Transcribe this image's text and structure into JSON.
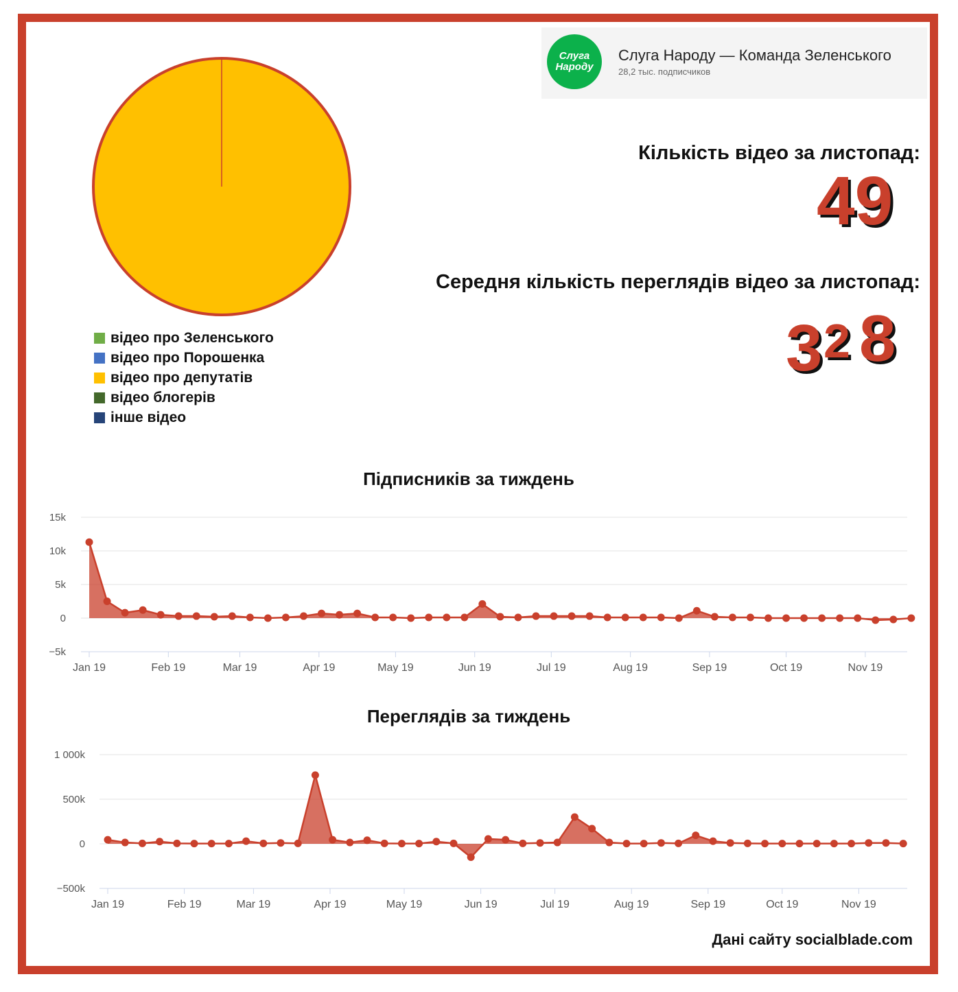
{
  "channel": {
    "logo_line1": "Слуга",
    "logo_line2": "Народу",
    "name": "Слуга Народу — Команда Зеленського",
    "subscribers": "28,2 тыс. подписчиков",
    "logo_color": "#0cb14b"
  },
  "stats": {
    "videos_label": "Кількість відео за листопад:",
    "videos_value": "49",
    "avg_views_label": "Середня кількість переглядів відео за листопад:",
    "avg_views_digit1": "3",
    "avg_views_digit2": "2",
    "avg_views_digit3": "8"
  },
  "source_note": "Дані сайту socialblade.com",
  "chart_data": [
    {
      "type": "pie",
      "slices": [
        {
          "label": "відео про Зеленського",
          "value": 0,
          "color": "#70ad47"
        },
        {
          "label": "відео про Порошенка",
          "value": 0,
          "color": "#4472c4"
        },
        {
          "label": "відео про депутатів",
          "value": 100,
          "color": "#ffc000"
        },
        {
          "label": "відео блогерів",
          "value": 0,
          "color": "#43682b"
        },
        {
          "label": "інше відео",
          "value": 0,
          "color": "#264478"
        }
      ],
      "legend_position": "bottom-left"
    },
    {
      "type": "area",
      "title": "Підписників за тиждень",
      "color": "#c9402c",
      "x": [
        "2019-01-01",
        "2019-01-08",
        "2019-01-15",
        "2019-01-22",
        "2019-01-29",
        "2019-02-05",
        "2019-02-12",
        "2019-02-19",
        "2019-02-26",
        "2019-03-05",
        "2019-03-12",
        "2019-03-19",
        "2019-03-26",
        "2019-04-02",
        "2019-04-09",
        "2019-04-16",
        "2019-04-23",
        "2019-04-30",
        "2019-05-07",
        "2019-05-14",
        "2019-05-21",
        "2019-05-28",
        "2019-06-04",
        "2019-06-11",
        "2019-06-18",
        "2019-06-25",
        "2019-07-02",
        "2019-07-09",
        "2019-07-16",
        "2019-07-23",
        "2019-07-30",
        "2019-08-06",
        "2019-08-13",
        "2019-08-20",
        "2019-08-27",
        "2019-09-03",
        "2019-09-10",
        "2019-09-17",
        "2019-09-24",
        "2019-10-01",
        "2019-10-08",
        "2019-10-15",
        "2019-10-22",
        "2019-10-29",
        "2019-11-05",
        "2019-11-12",
        "2019-11-19"
      ],
      "values": [
        11300,
        2500,
        800,
        1200,
        500,
        300,
        300,
        200,
        300,
        100,
        0,
        100,
        300,
        700,
        500,
        700,
        100,
        100,
        0,
        100,
        100,
        100,
        2100,
        200,
        100,
        300,
        300,
        300,
        300,
        100,
        100,
        100,
        100,
        0,
        1100,
        200,
        100,
        100,
        0,
        0,
        0,
        0,
        0,
        0,
        -300,
        -200,
        0
      ],
      "ylim": [
        -5000,
        15000
      ],
      "yticks": [
        "−5k",
        "0",
        "5k",
        "10k",
        "15k"
      ],
      "xticks": [
        "Jan 19",
        "Feb 19",
        "Mar 19",
        "Apr 19",
        "May 19",
        "Jun 19",
        "Jul 19",
        "Aug 19",
        "Sep 19",
        "Oct 19",
        "Nov 19"
      ],
      "grid": true
    },
    {
      "type": "area",
      "title": "Переглядів за тиждень",
      "color": "#c9402c",
      "x": [
        "2019-01-01",
        "2019-01-08",
        "2019-01-15",
        "2019-01-22",
        "2019-01-29",
        "2019-02-05",
        "2019-02-12",
        "2019-02-19",
        "2019-02-26",
        "2019-03-05",
        "2019-03-12",
        "2019-03-19",
        "2019-03-26",
        "2019-04-02",
        "2019-04-09",
        "2019-04-16",
        "2019-04-23",
        "2019-04-30",
        "2019-05-07",
        "2019-05-14",
        "2019-05-21",
        "2019-05-28",
        "2019-06-04",
        "2019-06-11",
        "2019-06-18",
        "2019-06-25",
        "2019-07-02",
        "2019-07-09",
        "2019-07-16",
        "2019-07-23",
        "2019-07-30",
        "2019-08-06",
        "2019-08-13",
        "2019-08-20",
        "2019-08-27",
        "2019-09-03",
        "2019-09-10",
        "2019-09-17",
        "2019-09-24",
        "2019-10-01",
        "2019-10-08",
        "2019-10-15",
        "2019-10-22",
        "2019-10-29",
        "2019-11-05",
        "2019-11-12",
        "2019-11-19"
      ],
      "values": [
        45000,
        15000,
        5000,
        25000,
        5000,
        3000,
        3000,
        3000,
        30000,
        5000,
        10000,
        5000,
        770000,
        45000,
        15000,
        40000,
        5000,
        3000,
        3000,
        25000,
        5000,
        -150000,
        55000,
        45000,
        5000,
        10000,
        15000,
        300000,
        170000,
        15000,
        3000,
        3000,
        10000,
        5000,
        95000,
        30000,
        10000,
        5000,
        3000,
        3000,
        3000,
        3000,
        3000,
        3000,
        10000,
        10000,
        3000
      ],
      "ylim": [
        -500000,
        1000000
      ],
      "yticks": [
        "−500k",
        "0",
        "500k",
        "1 000k"
      ],
      "xticks": [
        "Jan 19",
        "Feb 19",
        "Mar 19",
        "Apr 19",
        "May 19",
        "Jun 19",
        "Jul 19",
        "Aug 19",
        "Sep 19",
        "Oct 19",
        "Nov 19"
      ],
      "grid": true
    }
  ]
}
